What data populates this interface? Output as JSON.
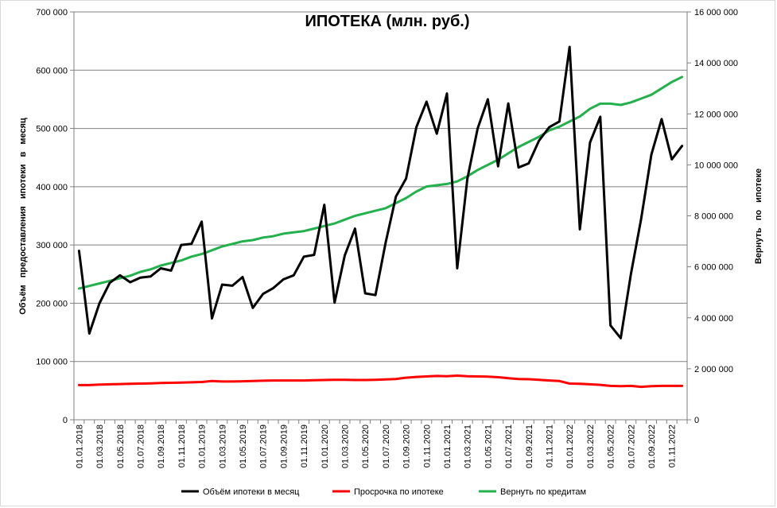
{
  "chart_data": {
    "type": "line",
    "title": "ИПОТЕКА (млн. руб.)",
    "ylabel_left": "Объём предоставления ипотеки в месяц",
    "ylabel_right": "Вернуть по ипотеке",
    "ylim_left": [
      0,
      700000
    ],
    "ylim_right": [
      0,
      16000000
    ],
    "yticks_left": [
      "0",
      "100 000",
      "200 000",
      "300 000",
      "400 000",
      "500 000",
      "600 000",
      "700 000"
    ],
    "yticks_right": [
      "0",
      "2 000 000",
      "4 000 000",
      "6 000 000",
      "8 000 000",
      "10 000 000",
      "12 000 000",
      "14 000 000",
      "16 000 000"
    ],
    "grid": true,
    "legend_position": "bottom",
    "x_labels": [
      "01.01.2018",
      "01.03.2018",
      "01.05.2018",
      "01.07.2018",
      "01.09.2018",
      "01.11.2018",
      "01.01.2019",
      "01.03.2019",
      "01.05.2019",
      "01.07.2019",
      "01.09.2019",
      "01.11.2019",
      "01.01.2020",
      "01.03.2020",
      "01.05.2020",
      "01.07.2020",
      "01.09.2020",
      "01.11.2020",
      "01.01.2021",
      "01.03.2021",
      "01.05.2021",
      "01.07.2021",
      "01.09.2021",
      "01.11.2021",
      "01.01.2022",
      "01.03.2022",
      "01.05.2022",
      "01.07.2022",
      "01.09.2022",
      "01.11.2022"
    ],
    "x": [
      "2018-01",
      "2018-02",
      "2018-03",
      "2018-04",
      "2018-05",
      "2018-06",
      "2018-07",
      "2018-08",
      "2018-09",
      "2018-10",
      "2018-11",
      "2018-12",
      "2019-01",
      "2019-02",
      "2019-03",
      "2019-04",
      "2019-05",
      "2019-06",
      "2019-07",
      "2019-08",
      "2019-09",
      "2019-10",
      "2019-11",
      "2019-12",
      "2020-01",
      "2020-02",
      "2020-03",
      "2020-04",
      "2020-05",
      "2020-06",
      "2020-07",
      "2020-08",
      "2020-09",
      "2020-10",
      "2020-11",
      "2020-12",
      "2021-01",
      "2021-02",
      "2021-03",
      "2021-04",
      "2021-05",
      "2021-06",
      "2021-07",
      "2021-08",
      "2021-09",
      "2021-10",
      "2021-11",
      "2021-12",
      "2022-01",
      "2022-02",
      "2022-03",
      "2022-04",
      "2022-05",
      "2022-06",
      "2022-07",
      "2022-08",
      "2022-09",
      "2022-10",
      "2022-11",
      "2022-12"
    ],
    "series": [
      {
        "name": "Объём ипотеки в месяц",
        "axis": "left",
        "color": "#000000",
        "values": [
          290000,
          148000,
          200000,
          235000,
          248000,
          236000,
          244000,
          246000,
          260000,
          256000,
          300000,
          302000,
          340000,
          174000,
          232000,
          230000,
          245000,
          192000,
          216000,
          226000,
          241000,
          248000,
          280000,
          283000,
          369000,
          201000,
          282000,
          328000,
          217000,
          214000,
          304000,
          383000,
          414000,
          502000,
          546000,
          491000,
          560000,
          260000,
          414000,
          500000,
          550000,
          435000,
          543000,
          433000,
          440000,
          479000,
          502000,
          512000,
          640000,
          327000,
          476000,
          520000,
          162000,
          140000,
          250000,
          345000,
          455000,
          516000,
          447000,
          470000
        ]
      },
      {
        "name": "Просрочка по ипотеке",
        "axis": "right",
        "color": "#ff0000",
        "values": [
          1360000,
          1360000,
          1380000,
          1390000,
          1400000,
          1410000,
          1420000,
          1430000,
          1440000,
          1450000,
          1460000,
          1470000,
          1480000,
          1520000,
          1500000,
          1500000,
          1510000,
          1520000,
          1530000,
          1540000,
          1540000,
          1540000,
          1540000,
          1550000,
          1560000,
          1570000,
          1570000,
          1560000,
          1560000,
          1570000,
          1580000,
          1600000,
          1650000,
          1680000,
          1700000,
          1720000,
          1710000,
          1730000,
          1710000,
          1700000,
          1690000,
          1670000,
          1630000,
          1600000,
          1590000,
          1570000,
          1540000,
          1520000,
          1420000,
          1410000,
          1390000,
          1370000,
          1330000,
          1320000,
          1330000,
          1290000,
          1320000,
          1330000,
          1330000,
          1330000
        ]
      },
      {
        "name": "Вернуть по кредитам",
        "axis": "right",
        "color": "#22b14c",
        "values": [
          5150000,
          5250000,
          5350000,
          5450000,
          5550000,
          5650000,
          5800000,
          5900000,
          6050000,
          6150000,
          6250000,
          6400000,
          6500000,
          6650000,
          6800000,
          6900000,
          7000000,
          7050000,
          7150000,
          7200000,
          7300000,
          7350000,
          7400000,
          7500000,
          7600000,
          7700000,
          7850000,
          8000000,
          8100000,
          8200000,
          8300000,
          8500000,
          8700000,
          8950000,
          9150000,
          9200000,
          9250000,
          9350000,
          9550000,
          9800000,
          10000000,
          10200000,
          10450000,
          10700000,
          10900000,
          11100000,
          11350000,
          11500000,
          11700000,
          11900000,
          12200000,
          12400000,
          12400000,
          12350000,
          12450000,
          12600000,
          12750000,
          13000000,
          13250000,
          13450000
        ]
      }
    ]
  }
}
